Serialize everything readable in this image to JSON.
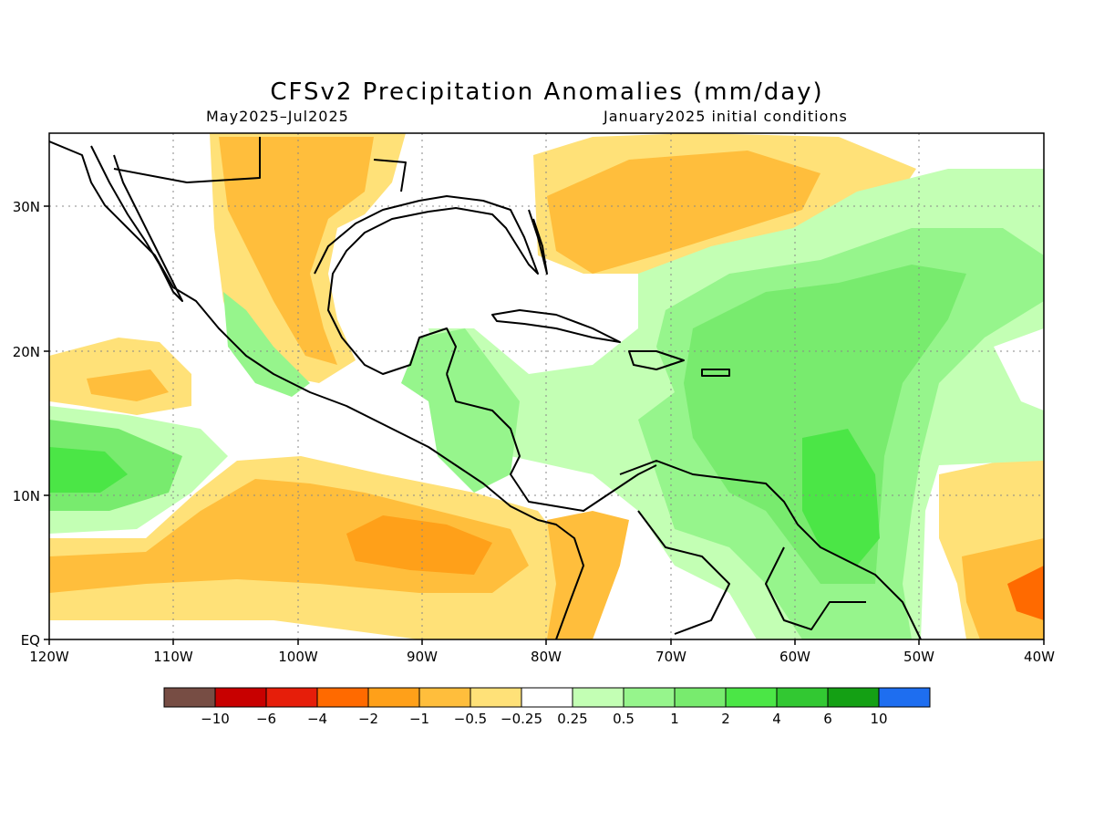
{
  "title": "CFSv2 Precipitation Anomalies (mm/day)",
  "subtitle_left": "May2025–Jul2025",
  "subtitle_right": "January2025 initial conditions",
  "lat_labels": [
    "30N",
    "20N",
    "10N",
    "EQ"
  ],
  "lon_labels": [
    "120W",
    "110W",
    "100W",
    "90W",
    "80W",
    "70W",
    "60W",
    "50W",
    "40W"
  ],
  "colorbar": {
    "colors": [
      "#774d44",
      "#c80000",
      "#e61e0a",
      "#ff6a00",
      "#ffa019",
      "#ffbe3c",
      "#ffe178",
      "#ffffff",
      "#c3ffb4",
      "#96f58c",
      "#78eb6e",
      "#4be646",
      "#32c832",
      "#14a014",
      "#1e6ef0"
    ],
    "tick_labels": [
      "−10",
      "−6",
      "−4",
      "−2",
      "−1",
      "−0.5",
      "−0.25",
      "0.25",
      "0.5",
      "1",
      "2",
      "4",
      "6",
      "10"
    ]
  }
}
